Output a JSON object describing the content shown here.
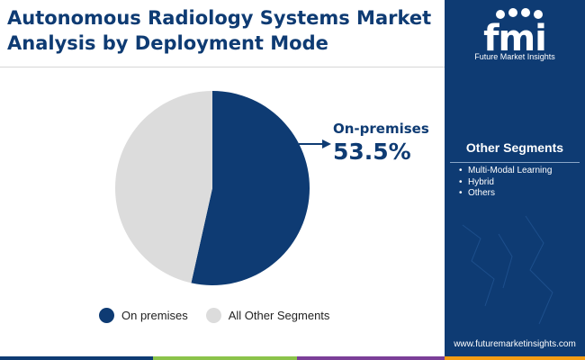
{
  "title": {
    "line1": "Autonomous Radiology Systems Market",
    "line2": "Analysis by Deployment Mode"
  },
  "chart_data": {
    "type": "pie",
    "title": "Autonomous Radiology Systems Market Analysis by Deployment Mode",
    "slices": [
      {
        "name": "On premises",
        "value": 53.5,
        "color": "#0e3b73"
      },
      {
        "name": "All Other Segments",
        "value": 46.5,
        "color": "#dcdcdc"
      }
    ],
    "callout": {
      "label": "On-premises",
      "value": "53.5%"
    },
    "legend_position": "bottom"
  },
  "legend": [
    "On premises",
    "All Other Segments"
  ],
  "sidebar": {
    "logo_text": "Future Market Insights",
    "heading": "Other Segments",
    "items": [
      "Multi-Modal Learning",
      "Hybrid",
      "Others"
    ],
    "website": "www.futuremarketinsights.com"
  },
  "colors": {
    "brand_navy": "#0e3b73",
    "other_gray": "#dcdcdc",
    "accent_green": "#8bc34a",
    "accent_orange": "#f39c12",
    "accent_purple": "#7b3f98"
  },
  "icons": {
    "logo": "fmi-logo",
    "arrow": "callout-arrow-icon"
  }
}
